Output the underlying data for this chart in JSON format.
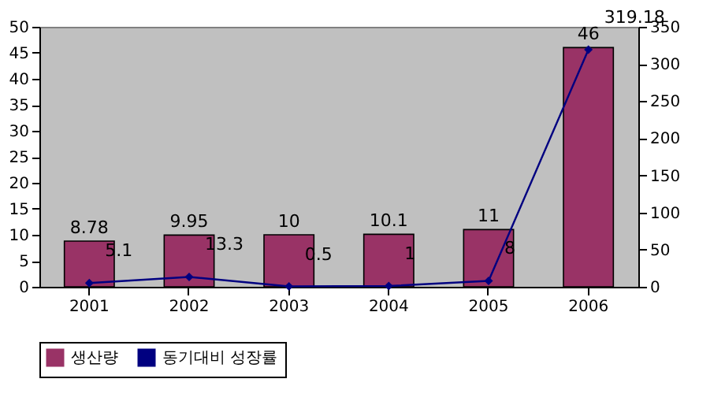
{
  "chart_data": {
    "type": "bar",
    "categories": [
      "2001",
      "2002",
      "2003",
      "2004",
      "2005",
      "2006"
    ],
    "series": [
      {
        "name": "생산량",
        "color": "#993366",
        "values": [
          8.78,
          9.95,
          10,
          10.1,
          11,
          46
        ]
      },
      {
        "name": "동기대비 성장률",
        "type": "line",
        "axis": "y2",
        "color": "#000080",
        "marker": "diamond",
        "values": [
          5.1,
          13.3,
          0.5,
          1,
          8,
          319.18
        ]
      }
    ],
    "ylim": [
      0,
      50
    ],
    "yticks": [
      0,
      5,
      10,
      15,
      20,
      25,
      30,
      35,
      40,
      45,
      50
    ],
    "y2lim": [
      0,
      350
    ],
    "y2ticks": [
      0,
      50,
      100,
      150,
      200,
      250,
      300,
      350
    ],
    "data_labels": true,
    "grid": false,
    "legend": "bottom"
  }
}
